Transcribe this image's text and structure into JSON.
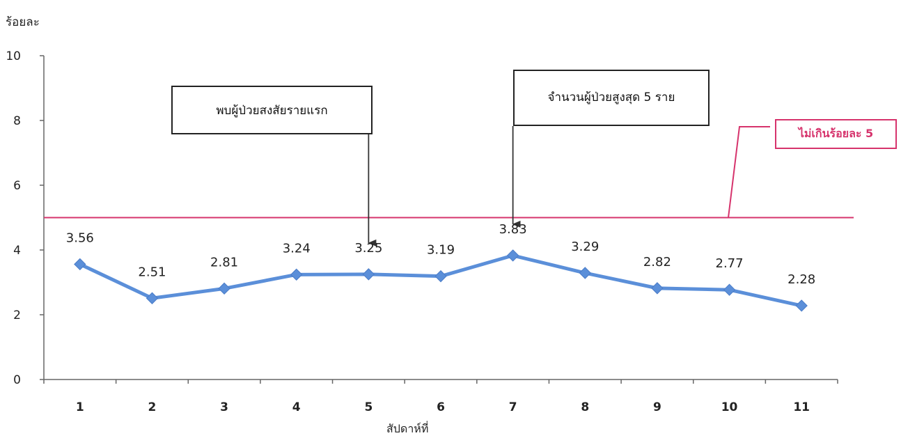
{
  "chart_data": {
    "type": "line",
    "ylabel": "ร้อยละ",
    "xlabel": "สัปดาห์ที่",
    "ylim": [
      0,
      10
    ],
    "yticks": [
      0,
      2,
      4,
      6,
      8,
      10
    ],
    "categories": [
      "1",
      "2",
      "3",
      "4",
      "5",
      "6",
      "7",
      "8",
      "9",
      "10",
      "11"
    ],
    "series": [
      {
        "values": [
          3.56,
          2.51,
          2.81,
          3.24,
          3.25,
          3.19,
          3.83,
          3.29,
          2.82,
          2.77,
          2.28
        ]
      }
    ],
    "data_labels": [
      "3.56",
      "2.51",
      "2.81",
      "3.24",
      "3.25",
      "3.19",
      "3.83",
      "3.29",
      "2.82",
      "2.77",
      "2.28"
    ],
    "threshold": {
      "value": 5,
      "label": "ไม่เกินร้อยละ 5"
    },
    "annotations": [
      {
        "text": "พบผู้ป่วยสงสัยรายแรก",
        "category": "5"
      },
      {
        "text": "จำนวนผู้ป่วยสูงสุด 5 ราย",
        "category": "7"
      }
    ],
    "grid": false,
    "colors": {
      "line": "#5b8fd9",
      "threshold": "#d6336c"
    }
  }
}
